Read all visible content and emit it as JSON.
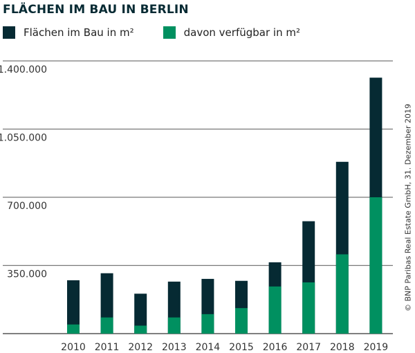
{
  "chart_data": {
    "type": "bar",
    "stacked": false,
    "title": "FLÄCHEN IM BAU IN BERLIN",
    "categories": [
      "2010",
      "2011",
      "2012",
      "2013",
      "2014",
      "2015",
      "2016",
      "2017",
      "2018",
      "2019"
    ],
    "series": [
      {
        "name": "Flächen im Bau in m²",
        "color": "#062a33",
        "values": [
          274000,
          310000,
          205000,
          267000,
          281000,
          271000,
          366000,
          577000,
          882000,
          1314000
        ]
      },
      {
        "name": "davon verfügbar in m²",
        "color": "#009060",
        "values": [
          47000,
          83000,
          41000,
          83000,
          100000,
          131000,
          242000,
          263000,
          407000,
          700000
        ]
      }
    ],
    "ylim": [
      0,
      1400000
    ],
    "yticks": [
      350000,
      700000,
      1050000,
      1400000
    ],
    "ytick_labels": [
      "350.000",
      "700.000",
      "1.050.000",
      "1.400.000"
    ],
    "grid": true,
    "legend": "top-left",
    "credit": "© BNP Paribas Real Estate GmbH, 31. Dezember 2019"
  }
}
